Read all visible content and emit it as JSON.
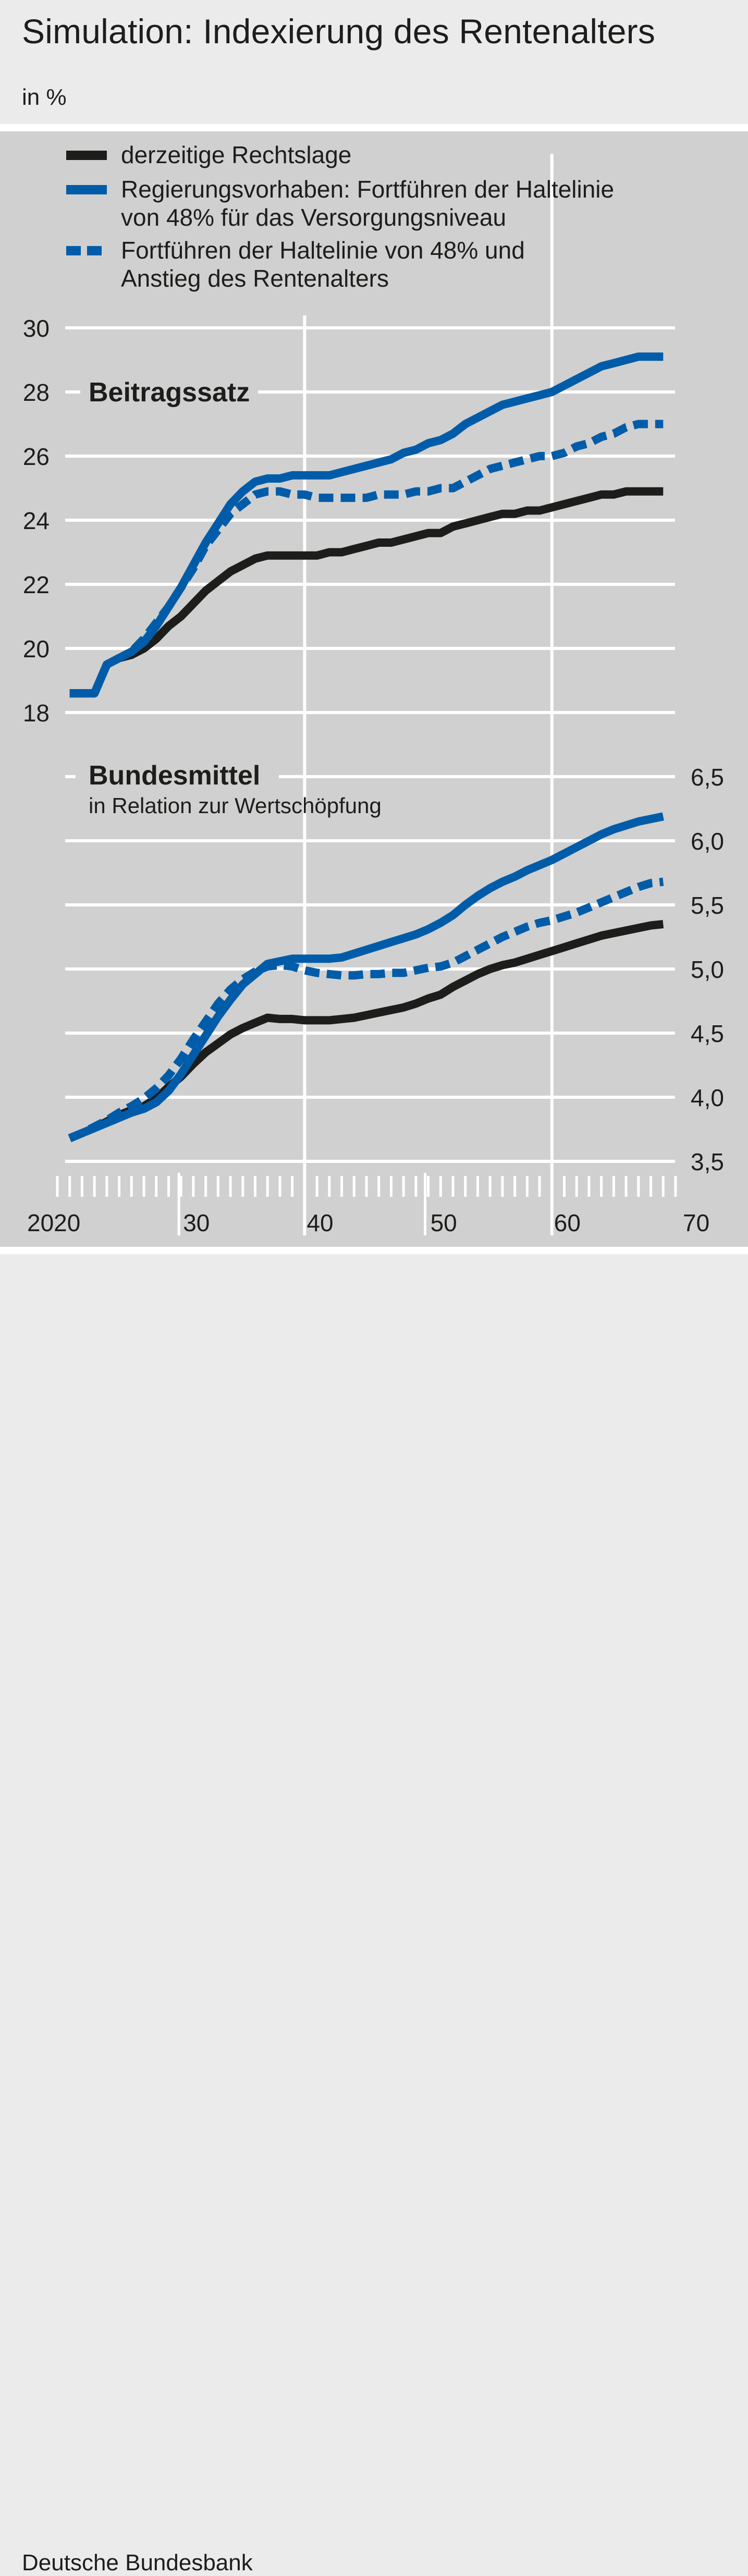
{
  "header": {
    "title": "Simulation: Indexierung des Rentenalters",
    "unit": "in %"
  },
  "footer": {
    "source": "Deutsche Bundesbank"
  },
  "legend": [
    {
      "lines": [
        "derzeitige Rechtslage"
      ],
      "color": "#1d1d1b",
      "style": "solid"
    },
    {
      "lines": [
        "Regierungsvorhaben: Fortführen der Haltelinie",
        "von 48% für das Versorgungsniveau"
      ],
      "color": "#005ca8",
      "style": "solid"
    },
    {
      "lines": [
        "Fortführen der Haltelinie von 48% und",
        "Anstieg des Rentenalters"
      ],
      "color": "#005ca8",
      "style": "dashed"
    }
  ],
  "x_axis": {
    "ticks": [
      2020,
      2030,
      2040,
      2050,
      2060,
      2070
    ],
    "labels": [
      "2020",
      "30",
      "40",
      "50",
      "60",
      "70"
    ]
  },
  "chart_data": [
    {
      "type": "line",
      "title": "Beitragssatz",
      "x": [
        2021,
        2022,
        2023,
        2024,
        2025,
        2026,
        2027,
        2028,
        2029,
        2030,
        2031,
        2032,
        2033,
        2034,
        2035,
        2036,
        2037,
        2038,
        2039,
        2040,
        2041,
        2042,
        2043,
        2044,
        2045,
        2046,
        2047,
        2048,
        2049,
        2050,
        2051,
        2052,
        2053,
        2054,
        2055,
        2056,
        2057,
        2058,
        2059,
        2060,
        2061,
        2062,
        2063,
        2064,
        2065,
        2066,
        2067,
        2068,
        2069
      ],
      "ylim": [
        18,
        30
      ],
      "yticks": [
        18,
        20,
        22,
        24,
        26,
        28,
        30
      ],
      "ytick_labels": [
        "18",
        "20",
        "22",
        "24",
        "26",
        "28",
        "30"
      ],
      "series": [
        {
          "name": "derzeitige Rechtslage",
          "values": [
            18.6,
            18.6,
            18.6,
            19.5,
            19.7,
            19.8,
            20.0,
            20.3,
            20.7,
            21.0,
            21.4,
            21.8,
            22.1,
            22.4,
            22.6,
            22.8,
            22.9,
            22.9,
            22.9,
            22.9,
            22.9,
            23.0,
            23.0,
            23.1,
            23.2,
            23.3,
            23.3,
            23.4,
            23.5,
            23.6,
            23.6,
            23.8,
            23.9,
            24.0,
            24.1,
            24.2,
            24.2,
            24.3,
            24.3,
            24.4,
            24.5,
            24.6,
            24.7,
            24.8,
            24.8,
            24.9,
            24.9,
            24.9,
            24.9
          ]
        },
        {
          "name": "Regierungsvorhaben: Fortführen der Haltelinie von 48% für das Versorgungsniveau",
          "values": [
            18.6,
            18.6,
            18.6,
            19.5,
            19.7,
            19.9,
            20.2,
            20.7,
            21.3,
            21.9,
            22.6,
            23.3,
            23.9,
            24.5,
            24.9,
            25.2,
            25.3,
            25.3,
            25.4,
            25.4,
            25.4,
            25.4,
            25.5,
            25.6,
            25.7,
            25.8,
            25.9,
            26.1,
            26.2,
            26.4,
            26.5,
            26.7,
            27.0,
            27.2,
            27.4,
            27.6,
            27.7,
            27.8,
            27.9,
            28.0,
            28.2,
            28.4,
            28.6,
            28.8,
            28.9,
            29.0,
            29.1,
            29.1,
            29.1
          ]
        },
        {
          "name": "Fortführen der Haltelinie von 48% und Anstieg des Rentenalters",
          "values": [
            18.6,
            18.6,
            18.6,
            19.5,
            19.7,
            19.9,
            20.3,
            20.8,
            21.3,
            21.9,
            22.5,
            23.2,
            23.7,
            24.2,
            24.5,
            24.8,
            24.9,
            24.9,
            24.8,
            24.8,
            24.7,
            24.7,
            24.7,
            24.7,
            24.7,
            24.8,
            24.8,
            24.8,
            24.9,
            24.9,
            25.0,
            25.0,
            25.2,
            25.4,
            25.6,
            25.7,
            25.8,
            25.9,
            26.0,
            26.0,
            26.1,
            26.3,
            26.4,
            26.6,
            26.7,
            26.9,
            27.0,
            27.0,
            27.0
          ]
        }
      ]
    },
    {
      "type": "line",
      "title": "Bundesmittel",
      "subtitle": "in Relation zur Wertschöpfung",
      "x": [
        2021,
        2022,
        2023,
        2024,
        2025,
        2026,
        2027,
        2028,
        2029,
        2030,
        2031,
        2032,
        2033,
        2034,
        2035,
        2036,
        2037,
        2038,
        2039,
        2040,
        2041,
        2042,
        2043,
        2044,
        2045,
        2046,
        2047,
        2048,
        2049,
        2050,
        2051,
        2052,
        2053,
        2054,
        2055,
        2056,
        2057,
        2058,
        2059,
        2060,
        2061,
        2062,
        2063,
        2064,
        2065,
        2066,
        2067,
        2068,
        2069
      ],
      "ylim": [
        3.5,
        6.5
      ],
      "yticks": [
        3.5,
        4.0,
        4.5,
        5.0,
        5.5,
        6.0,
        6.5
      ],
      "ytick_labels": [
        "3,5",
        "4,0",
        "4,5",
        "5,0",
        "5,5",
        "6,0",
        "6,5"
      ],
      "series": [
        {
          "name": "derzeitige Rechtslage",
          "values": [
            3.68,
            3.72,
            3.76,
            3.81,
            3.86,
            3.9,
            3.93,
            3.99,
            4.08,
            4.16,
            4.26,
            4.35,
            4.42,
            4.49,
            4.54,
            4.58,
            4.62,
            4.61,
            4.61,
            4.6,
            4.6,
            4.6,
            4.61,
            4.62,
            4.64,
            4.66,
            4.68,
            4.7,
            4.73,
            4.77,
            4.8,
            4.86,
            4.91,
            4.96,
            5.0,
            5.03,
            5.05,
            5.08,
            5.11,
            5.14,
            5.17,
            5.2,
            5.23,
            5.26,
            5.28,
            5.3,
            5.32,
            5.34,
            5.35
          ]
        },
        {
          "name": "Regierungsvorhaben: Fortführen der Haltelinie von 48% für das Versorgungsniveau",
          "values": [
            3.68,
            3.72,
            3.76,
            3.8,
            3.84,
            3.88,
            3.91,
            3.96,
            4.05,
            4.18,
            4.33,
            4.48,
            4.63,
            4.76,
            4.88,
            4.96,
            5.04,
            5.06,
            5.08,
            5.08,
            5.08,
            5.08,
            5.09,
            5.12,
            5.15,
            5.18,
            5.21,
            5.24,
            5.27,
            5.31,
            5.36,
            5.42,
            5.5,
            5.57,
            5.63,
            5.68,
            5.72,
            5.77,
            5.81,
            5.85,
            5.9,
            5.95,
            6.0,
            6.05,
            6.09,
            6.12,
            6.15,
            6.17,
            6.19
          ]
        },
        {
          "name": "Fortführen der Haltelinie von 48% und Anstieg des Rentenalters",
          "values": [
            3.68,
            3.72,
            3.77,
            3.82,
            3.88,
            3.93,
            3.99,
            4.07,
            4.17,
            4.3,
            4.45,
            4.59,
            4.73,
            4.84,
            4.92,
            4.98,
            5.02,
            5.03,
            5.02,
            4.99,
            4.97,
            4.96,
            4.95,
            4.95,
            4.96,
            4.96,
            4.97,
            4.97,
            4.99,
            5.01,
            5.02,
            5.05,
            5.1,
            5.15,
            5.2,
            5.25,
            5.29,
            5.33,
            5.36,
            5.38,
            5.41,
            5.44,
            5.48,
            5.52,
            5.56,
            5.6,
            5.64,
            5.67,
            5.68
          ]
        }
      ]
    }
  ]
}
